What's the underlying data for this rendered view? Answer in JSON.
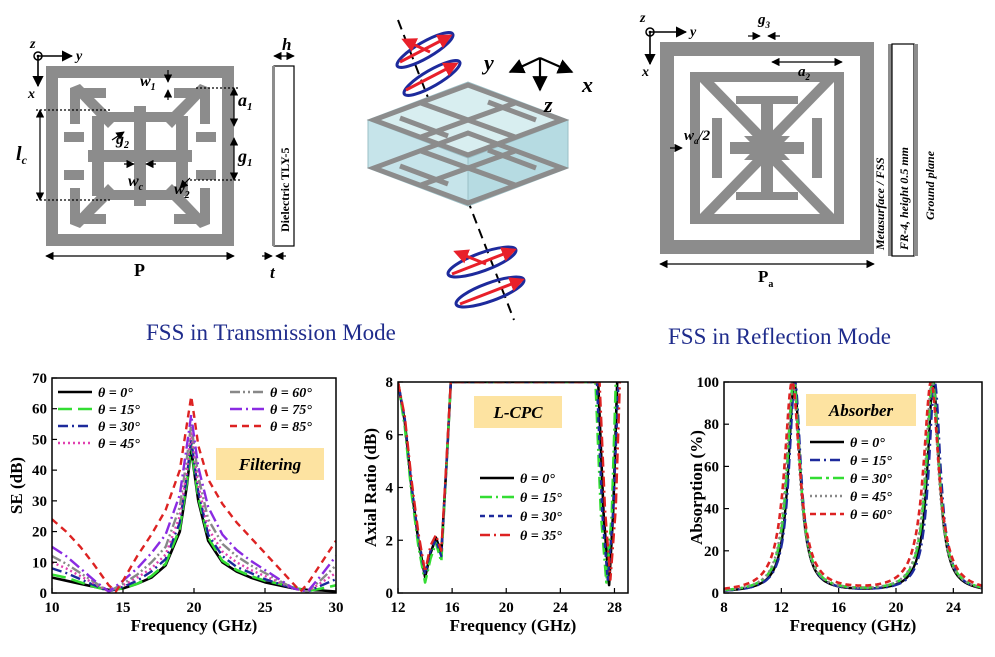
{
  "transmission_unit": {
    "labels": {
      "z": "z",
      "y": "y",
      "x": "x",
      "w1": "w",
      "w1_sub": "1",
      "a1": "a",
      "a1_sub": "1",
      "g1": "g",
      "g1_sub": "1",
      "g2": "g",
      "g2_sub": "2",
      "lc": "l",
      "lc_sub": "c",
      "wc": "w",
      "wc_sub": "c",
      "w2": "w",
      "w2_sub": "2",
      "P": "P",
      "h": "h",
      "t": "t",
      "dielectric": "Dielectric TLY-5"
    }
  },
  "iso_view": {
    "y": "y",
    "x": "x",
    "z": "z"
  },
  "reflection_unit": {
    "labels": {
      "z": "z",
      "y": "y",
      "x": "x",
      "g3": "g",
      "g3_sub": "3",
      "a2": "a",
      "a2_sub": "2",
      "wa": "w",
      "wa_sub": "a",
      "wa_suffix": "/2",
      "Pa": "P",
      "Pa_sub": "a",
      "layer1": "Metasurface / FSS",
      "layer2": "FR-4, height 0.5 mm",
      "layer3": "Ground plane"
    }
  },
  "section_labels": {
    "transmission": "FSS in Transmission Mode",
    "reflection": "FSS in Reflection Mode"
  },
  "colors": {
    "grey": "#8c8c8c",
    "navy": "#1f2c8c",
    "badge": "#fde3a1",
    "arrow_red": "#e8202a",
    "arrow_blue": "#1d2a9c"
  },
  "chart_data": [
    {
      "type": "line",
      "badge": "Filtering",
      "xlabel": "Frequency (GHz)",
      "ylabel": "SE (dB)",
      "xlim": [
        10,
        30
      ],
      "ylim": [
        0,
        70
      ],
      "xticks": [
        10,
        15,
        20,
        25,
        30
      ],
      "yticks": [
        0,
        10,
        20,
        30,
        40,
        50,
        60,
        70
      ],
      "legend_placement": "top",
      "series": [
        {
          "name": "θ = 0°",
          "color": "#000000",
          "dash": "",
          "width": 2.6,
          "x": [
            10,
            11,
            12,
            13,
            14,
            15,
            16,
            17,
            18,
            19,
            19.5,
            19.8,
            20,
            20.3,
            21,
            22,
            23,
            24,
            25,
            26,
            27,
            28,
            29,
            30
          ],
          "y": [
            5,
            4,
            3,
            2,
            1,
            1.5,
            3,
            5,
            9,
            20,
            35,
            47,
            40,
            30,
            17,
            10,
            7,
            5,
            3.5,
            2.5,
            1.5,
            1,
            0.8,
            0.5
          ]
        },
        {
          "name": "θ = 15°",
          "color": "#33dd33",
          "dash": "14,6",
          "width": 2.6,
          "x": [
            10,
            11,
            12,
            13,
            14,
            15,
            16,
            17,
            18,
            19,
            19.5,
            19.8,
            20,
            20.3,
            21,
            22,
            23,
            24,
            25,
            26,
            27,
            28,
            29,
            30
          ],
          "y": [
            6,
            5,
            3.5,
            2,
            0.8,
            1.5,
            3,
            5.5,
            9.5,
            21,
            36,
            48,
            41,
            31,
            18,
            10.5,
            7.5,
            5.5,
            4,
            3,
            1.8,
            0.6,
            1.5,
            2.5
          ]
        },
        {
          "name": "θ = 30°",
          "color": "#1d2a9c",
          "dash": "10,4,2,4",
          "width": 2.4,
          "x": [
            10,
            11,
            12,
            13,
            14,
            15,
            16,
            17,
            18,
            19,
            19.5,
            19.8,
            20,
            20.3,
            21,
            22,
            23,
            24,
            25,
            26,
            27,
            28,
            29,
            30
          ],
          "y": [
            8,
            6.5,
            4.5,
            2.5,
            0.5,
            2,
            4,
            7,
            11,
            23,
            38,
            50,
            43,
            33,
            19,
            12,
            8.5,
            6.5,
            4.5,
            3,
            1.5,
            0.5,
            2.5,
            4.5
          ]
        },
        {
          "name": "θ = 45°",
          "color": "#e040b0",
          "dash": "2,3",
          "width": 2.4,
          "x": [
            10,
            11,
            12,
            13,
            14,
            15,
            16,
            17,
            18,
            19,
            19.5,
            19.8,
            20,
            20.3,
            21,
            22,
            23,
            24,
            25,
            26,
            27,
            28,
            29,
            30
          ],
          "y": [
            10,
            8,
            5.5,
            3,
            0.5,
            2.5,
            5,
            8,
            12.5,
            25,
            40,
            52,
            45,
            35,
            21,
            13.5,
            10,
            7.5,
            5.5,
            3.5,
            1.5,
            0.5,
            3.5,
            6.5
          ]
        },
        {
          "name": "θ = 60°",
          "color": "#888888",
          "dash": "10,3,2,3,2,3",
          "width": 2.4,
          "x": [
            10,
            11,
            12,
            13,
            14,
            15,
            16,
            17,
            18,
            19,
            19.5,
            19.8,
            20,
            20.3,
            21,
            22,
            23,
            24,
            25,
            26,
            27,
            28,
            29,
            30
          ],
          "y": [
            12,
            9.5,
            6.5,
            3.5,
            0.5,
            3,
            6,
            10,
            15,
            28,
            44,
            55,
            48,
            38,
            24,
            16,
            12,
            9,
            6.5,
            4,
            1.5,
            0.5,
            4.5,
            9
          ]
        },
        {
          "name": "θ = 75°",
          "color": "#8a2be2",
          "dash": "12,4,2,4",
          "width": 2.4,
          "x": [
            10,
            11,
            12,
            13,
            14,
            15,
            16,
            17,
            18,
            19,
            19.5,
            19.8,
            20,
            20.3,
            21,
            22,
            23,
            24,
            25,
            26,
            27,
            28,
            29,
            30
          ],
          "y": [
            15,
            12,
            8,
            4,
            0.5,
            4,
            8,
            13,
            19,
            32,
            48,
            58,
            51,
            41,
            28,
            19,
            14,
            10.5,
            7.5,
            4.5,
            1.5,
            0.5,
            6,
            12
          ]
        },
        {
          "name": "θ = 85°",
          "color": "#dd2222",
          "dash": "7,5",
          "width": 2.4,
          "x": [
            10,
            11,
            12,
            13,
            14,
            14.5,
            15,
            16,
            17,
            18,
            19,
            19.5,
            19.8,
            20,
            20.3,
            21,
            22,
            23,
            24,
            25,
            26,
            27,
            27.5,
            28,
            29,
            30
          ],
          "y": [
            24,
            20,
            15,
            9,
            2.5,
            0.5,
            4,
            12,
            19,
            27,
            40,
            55,
            64,
            58,
            48,
            37,
            29,
            23,
            18,
            13,
            8,
            3,
            0.5,
            3,
            10,
            17
          ]
        }
      ]
    },
    {
      "type": "line",
      "badge": "L-CPC",
      "xlabel": "Frequency (GHz)",
      "ylabel": "Axial Ratio (dB)",
      "xlim": [
        12,
        29
      ],
      "ylim": [
        0,
        8
      ],
      "xticks": [
        12,
        16,
        20,
        24,
        28
      ],
      "yticks": [
        0,
        2,
        4,
        6,
        8
      ],
      "legend_placement": "middle-right",
      "series": [
        {
          "name": "θ = 0°",
          "color": "#000000",
          "dash": "",
          "width": 2.6,
          "x": [
            12,
            12.5,
            13,
            13.5,
            14,
            14.4,
            14.8,
            15.2,
            15.6,
            15.9,
            26.8,
            27.2,
            27.6,
            27.9,
            28.2
          ],
          "y": [
            8,
            6.5,
            4,
            2,
            0.6,
            1.5,
            2.1,
            1.5,
            5,
            8,
            8,
            3,
            0.3,
            3,
            8
          ]
        },
        {
          "name": "θ = 15°",
          "color": "#33dd33",
          "dash": "12,4,2,4",
          "width": 2.6,
          "x": [
            12,
            12.5,
            13,
            13.5,
            14,
            14.4,
            14.8,
            15.2,
            15.6,
            15.9,
            26.6,
            27,
            27.4,
            27.8,
            28.1
          ],
          "y": [
            8,
            6.3,
            3.8,
            1.8,
            0.4,
            1.3,
            1.9,
            1.2,
            5,
            8,
            8,
            3,
            0.4,
            3,
            8
          ]
        },
        {
          "name": "θ = 30°",
          "color": "#1d2a9c",
          "dash": "5,4",
          "width": 2.4,
          "x": [
            12,
            12.5,
            13,
            13.5,
            14,
            14.4,
            14.8,
            15.2,
            15.6,
            15.9,
            26.7,
            27.1,
            27.5,
            27.9,
            28.3
          ],
          "y": [
            8,
            6.6,
            4.1,
            2.1,
            0.7,
            1.6,
            2.0,
            1.4,
            5,
            8,
            8,
            3,
            0.5,
            3,
            8
          ]
        },
        {
          "name": "θ = 35°",
          "color": "#dd2222",
          "dash": "10,4,2,4",
          "width": 2.4,
          "x": [
            12,
            12.5,
            13,
            13.5,
            14,
            14.4,
            14.8,
            15.2,
            15.6,
            15.9,
            26.9,
            27.3,
            27.7,
            28.1,
            28.4
          ],
          "y": [
            8,
            6.7,
            4.3,
            2.3,
            0.8,
            1.8,
            2.2,
            1.6,
            5.2,
            8,
            8,
            3.2,
            0.5,
            3.2,
            8
          ]
        }
      ]
    },
    {
      "type": "line",
      "badge": "Absorber",
      "xlabel": "Frequency (GHz)",
      "ylabel": "Absorption (%)",
      "xlim": [
        8,
        26
      ],
      "ylim": [
        0,
        100
      ],
      "xticks": [
        8,
        12,
        16,
        20,
        24
      ],
      "yticks": [
        0,
        20,
        40,
        60,
        80,
        100
      ],
      "legend_placement": "middle-right",
      "series": [
        {
          "name": "θ = 0°",
          "color": "#000000",
          "dash": "",
          "width": 2.4,
          "f1": 12.9,
          "f2": 22.6,
          "g": 0.5
        },
        {
          "name": "θ = 15°",
          "color": "#1d2a9c",
          "dash": "10,4,2,4",
          "width": 2.4,
          "f1": 12.95,
          "f2": 22.7,
          "g": 0.5
        },
        {
          "name": "θ = 30°",
          "color": "#33dd33",
          "dash": "12,4,3,4",
          "width": 2.6,
          "f1": 12.85,
          "f2": 22.55,
          "g": 0.55
        },
        {
          "name": "θ = 45°",
          "color": "#888888",
          "dash": "2,3",
          "width": 2.4,
          "f1": 12.8,
          "f2": 22.5,
          "g": 0.55
        },
        {
          "name": "θ = 60°",
          "color": "#dd2222",
          "dash": "6,4",
          "width": 2.6,
          "f1": 12.75,
          "f2": 22.45,
          "g": 0.65
        }
      ]
    }
  ]
}
